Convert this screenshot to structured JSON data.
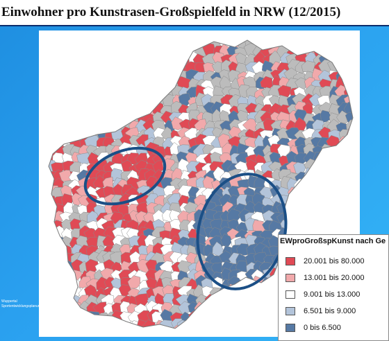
{
  "title": "Einwohner pro Kunstrasen-Großspielfeld in NRW (12/2015)",
  "map": {
    "region": "NRW",
    "colors": {
      "c1": "#e04a55",
      "c2": "#f1a9ab",
      "c3": "#ffffff",
      "c4": "#b3c4da",
      "c5": "#5679a4",
      "gray": "#bcbcbc",
      "ellipse": "#1b4f86"
    },
    "highlighted_areas": [
      "ruhr-area-ellipse",
      "southeast-area-ellipse"
    ]
  },
  "legend": {
    "title": "EWproGroßspKunst nach Ge",
    "items": [
      {
        "label": "20.001 bis 80.000",
        "color": "#e04a55"
      },
      {
        "label": "13.001 bis 20.000",
        "color": "#f1a9ab"
      },
      {
        "label": "9.001 bis 13.000",
        "color": "#ffffff"
      },
      {
        "label": "6.501 bis 9.000",
        "color": "#b3c4da"
      },
      {
        "label": "0 bis 6.500",
        "color": "#5679a4"
      }
    ]
  },
  "corner_note": {
    "line1": "Wuppertal",
    "line2": "Sportentwicklungsplanung"
  }
}
